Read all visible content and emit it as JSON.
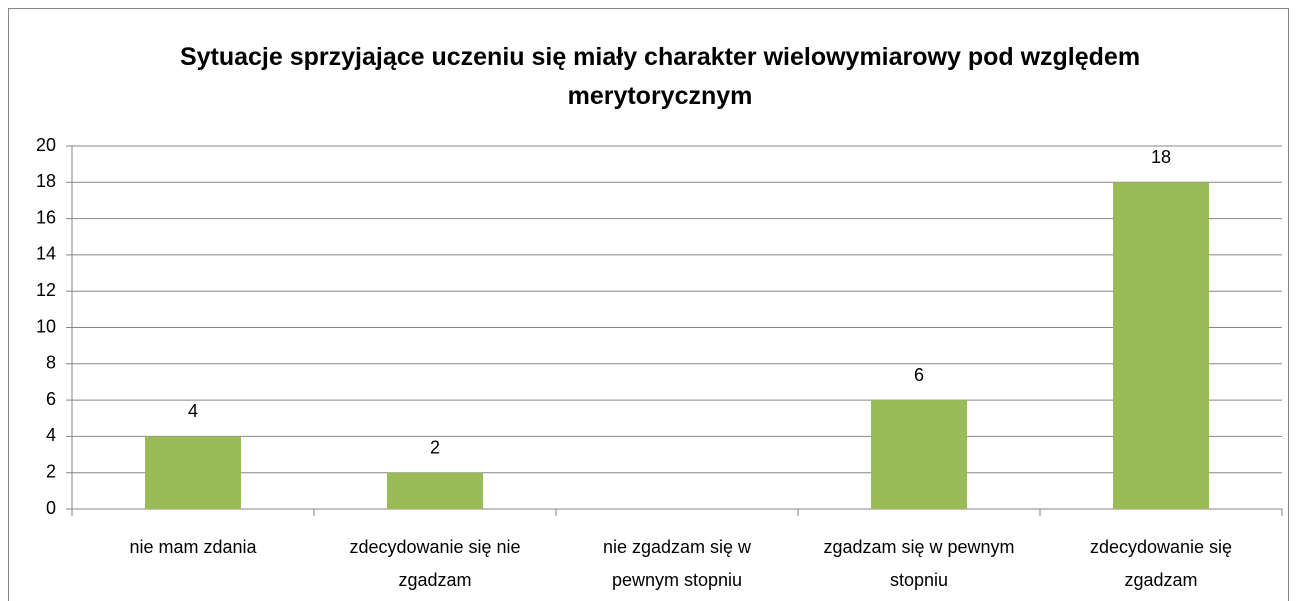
{
  "chart_data": {
    "type": "bar",
    "title": "Sytuacje sprzyjające uczeniu się miały charakter wielowymiarowy pod względem merytorycznym",
    "categories": [
      "nie mam zdania",
      "zdecydowanie się nie zgadzam",
      "nie zgadzam się w pewnym stopniu",
      "zgadzam się w pewnym stopniu",
      "zdecydowanie się zgadzam"
    ],
    "values": [
      4,
      2,
      0,
      6,
      18
    ],
    "color": "#9bbb59",
    "ylim": [
      0,
      20
    ],
    "yticks": [
      0,
      2,
      4,
      6,
      8,
      10,
      12,
      14,
      16,
      18,
      20
    ],
    "grid": true
  }
}
